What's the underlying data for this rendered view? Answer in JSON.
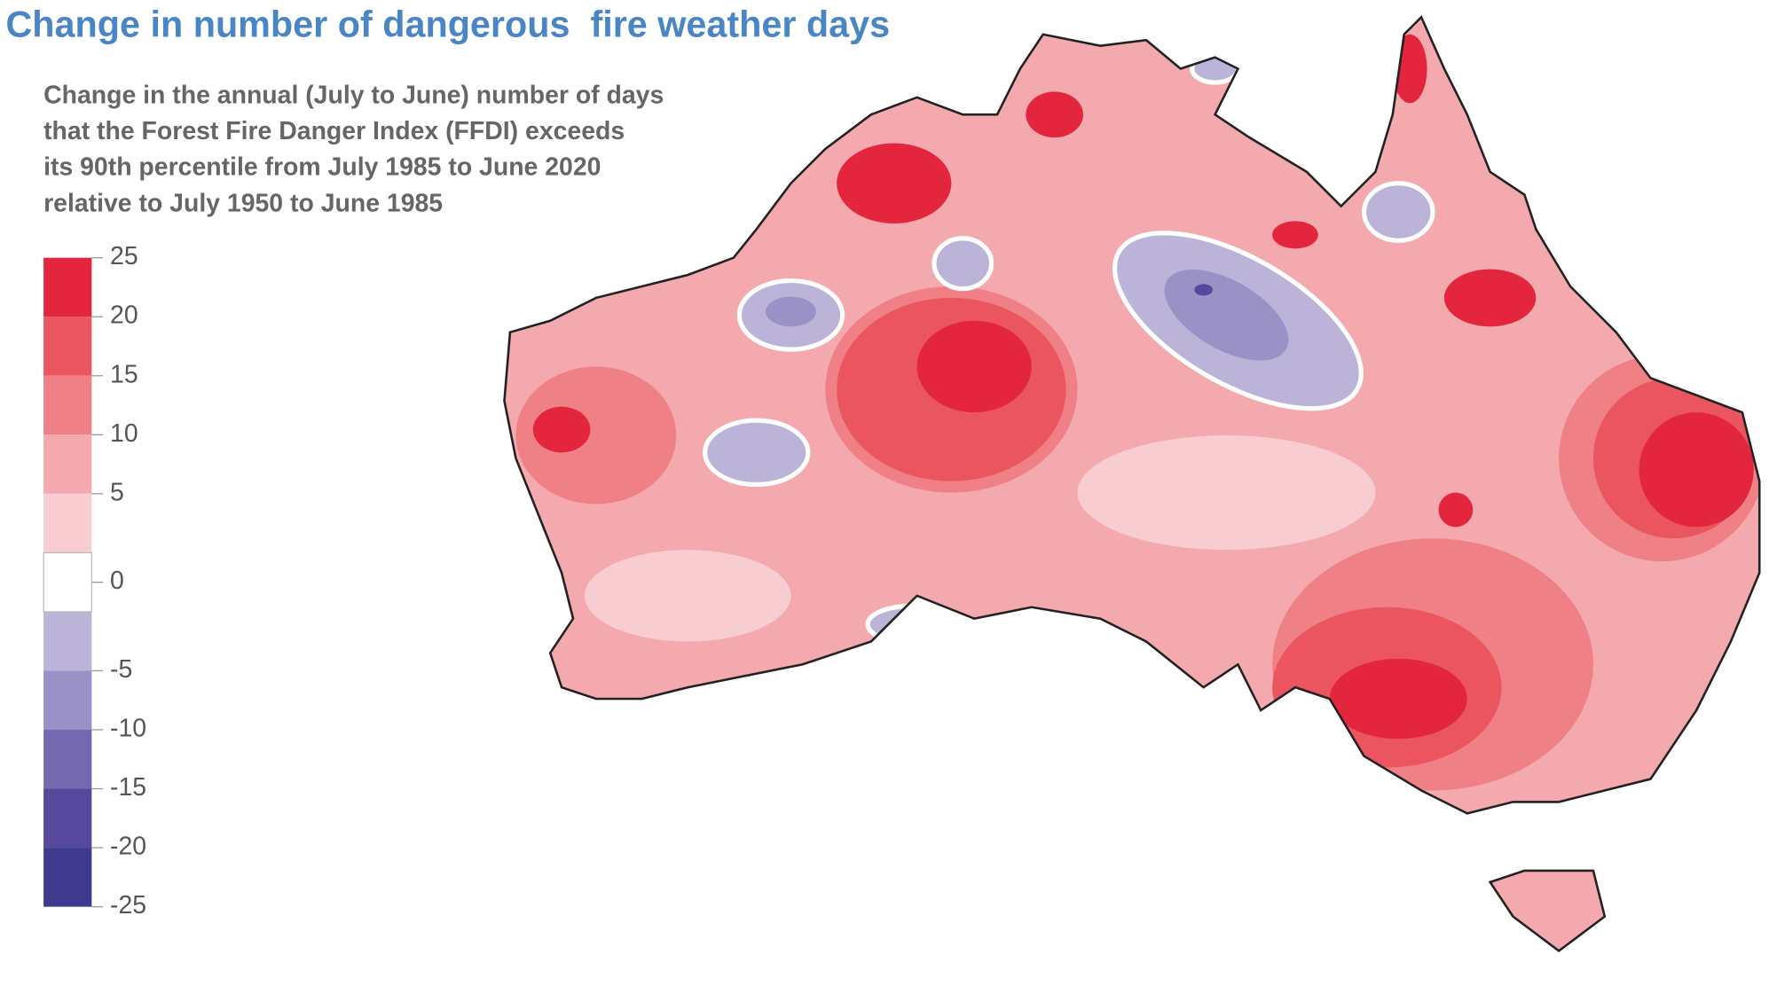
{
  "map": {
    "title": "Change in number of dangerous  fire weather days",
    "subtitle": [
      "Change in the annual (July to June) number of days",
      "that the Forest Fire Danger Index (FFDI) exceeds",
      "its 90th percentile from July 1985 to June 2020",
      "relative to July 1950 to June 1985"
    ],
    "colorbar": {
      "ticks": [
        25,
        20,
        15,
        10,
        5,
        0,
        -5,
        -10,
        -15,
        -20,
        -25
      ],
      "colors": [
        "#e3253d",
        "#ea5560",
        "#ef8086",
        "#f4a9af",
        "#f8cdd2",
        "#ffffff",
        "#bcb4d8",
        "#9a91c6",
        "#7469ae",
        "#56499b",
        "#3f3a8e"
      ]
    }
  }
}
